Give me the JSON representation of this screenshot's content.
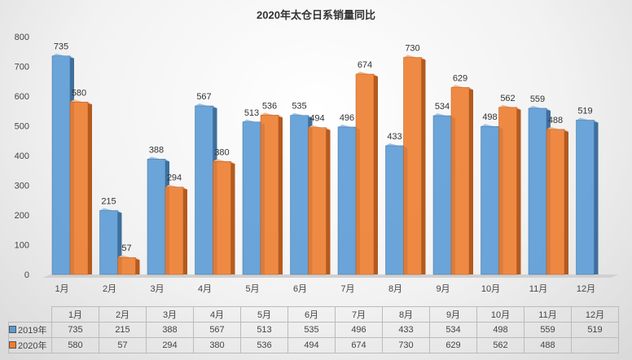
{
  "chart_data": {
    "type": "bar",
    "title": "2020年太仓日系销量同比",
    "categories": [
      "1月",
      "2月",
      "3月",
      "4月",
      "5月",
      "6月",
      "7月",
      "8月",
      "9月",
      "10月",
      "11月",
      "12月"
    ],
    "series": [
      {
        "name": "2019年",
        "color": "#5b9bd5",
        "values": [
          735,
          215,
          388,
          567,
          513,
          535,
          496,
          433,
          534,
          498,
          559,
          519
        ]
      },
      {
        "name": "2020年",
        "color": "#ed7d31",
        "values": [
          580,
          57,
          294,
          380,
          536,
          494,
          674,
          730,
          629,
          562,
          488,
          null
        ]
      }
    ],
    "ylim": [
      0,
      800
    ],
    "yticks": [
      0,
      100,
      200,
      300,
      400,
      500,
      600,
      700,
      800
    ],
    "xlabel": "",
    "ylabel": "",
    "legend": "data-table-bottom"
  }
}
